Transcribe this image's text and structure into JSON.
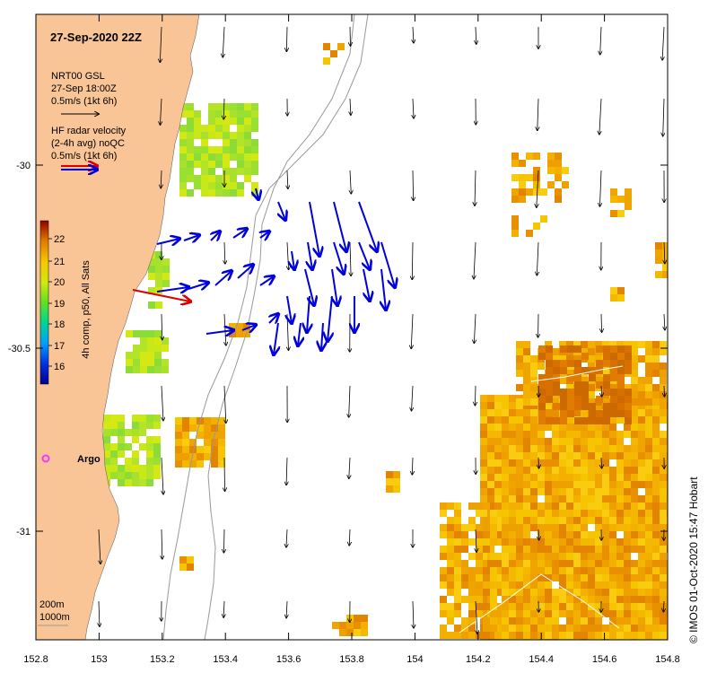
{
  "title": "27-Sep-2020 22Z",
  "legend_model": {
    "line1": "NRT00 GSL",
    "line2": "27-Sep 18:00Z",
    "line3": "0.5m/s (1kt 6h)"
  },
  "legend_radar": {
    "line1": "HF radar velocity",
    "line2": "(2-4h avg) noQC",
    "line3": "0.5m/s (1kt 6h)"
  },
  "colorbar": {
    "label": "4h comp, p50, All Sats",
    "ticks": [
      "22",
      "21",
      "20",
      "19",
      "18",
      "17",
      "16"
    ]
  },
  "argo_label": "Argo",
  "isobaths": {
    "a": "200m",
    "b": "1000m"
  },
  "x_ticks": [
    "152.8",
    "153",
    "153.2",
    "153.4",
    "153.6",
    "153.8",
    "154",
    "154.2",
    "154.4",
    "154.6",
    "154.8"
  ],
  "y_ticks": [
    "-30",
    "-30.5",
    "-31"
  ],
  "credit": "© IMOS 01-Oct-2020 15:47 Hobart",
  "colors": {
    "land": "#f9c597",
    "model_arrow": "#000000",
    "radar_arrow": "#0000dd",
    "argo_marker": "#ff33ff",
    "sst_warm": "#f0a400",
    "sst_green": "#9ae030"
  }
}
